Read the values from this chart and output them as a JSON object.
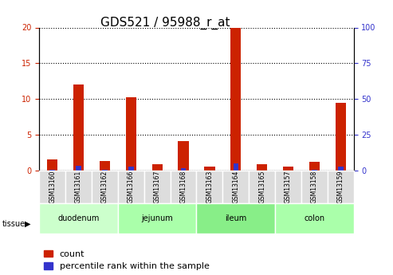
{
  "title": "GDS521 / 95988_r_at",
  "samples": [
    "GSM13160",
    "GSM13161",
    "GSM13162",
    "GSM13166",
    "GSM13167",
    "GSM13168",
    "GSM13163",
    "GSM13164",
    "GSM13165",
    "GSM13157",
    "GSM13158",
    "GSM13159"
  ],
  "count_values": [
    1.5,
    12.0,
    1.3,
    10.3,
    0.9,
    4.1,
    0.5,
    20.0,
    0.9,
    0.6,
    1.2,
    9.5
  ],
  "percentile_values": [
    0.5,
    3.3,
    0.3,
    3.0,
    0.2,
    1.7,
    0.2,
    4.7,
    0.2,
    0.2,
    0.3,
    2.8
  ],
  "tissues": [
    {
      "label": "duodenum",
      "start": 0,
      "end": 3,
      "color": "#ccffcc"
    },
    {
      "label": "jejunum",
      "start": 3,
      "end": 6,
      "color": "#aaffaa"
    },
    {
      "label": "ileum",
      "start": 6,
      "end": 9,
      "color": "#88ee88"
    },
    {
      "label": "colon",
      "start": 9,
      "end": 12,
      "color": "#aaffaa"
    }
  ],
  "ylim_left": [
    0,
    20
  ],
  "ylim_right": [
    0,
    100
  ],
  "yticks_left": [
    0,
    5,
    10,
    15,
    20
  ],
  "yticks_right": [
    0,
    25,
    50,
    75,
    100
  ],
  "bar_color_count": "#cc2200",
  "bar_color_pct": "#3333cc",
  "bar_width": 0.4,
  "background_color": "#ffffff",
  "plot_bg_color": "#ffffff",
  "grid_color": "black",
  "tissue_label": "tissue",
  "legend_count": "count",
  "legend_pct": "percentile rank within the sample",
  "sample_bg_color": "#dddddd",
  "title_fontsize": 11,
  "axis_label_fontsize": 8,
  "legend_fontsize": 8
}
